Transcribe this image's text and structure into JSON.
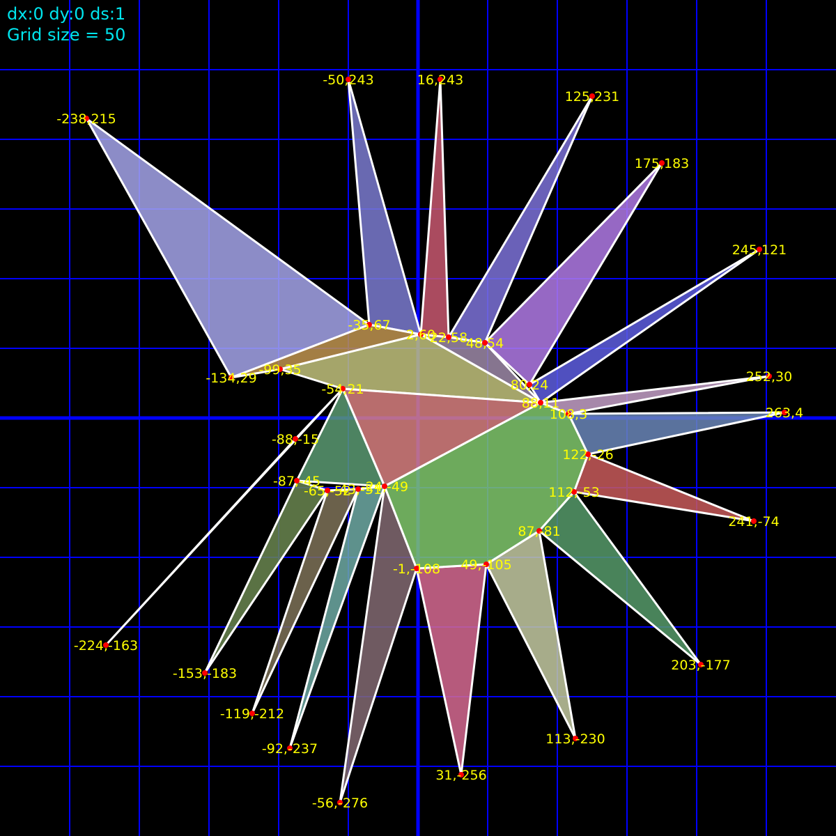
{
  "hud": {
    "offsets": "dx:0 dy:0 ds:1",
    "grid": "Grid size = 50"
  },
  "grid": {
    "size": 50,
    "range": [
      -300,
      300
    ],
    "line_color": "#0000ff",
    "axis_color": "#0000ff"
  },
  "colors": {
    "edge": "#ffffff",
    "point": "#ff0000",
    "label": "#ffff00"
  },
  "points": [
    {
      "id": "p1",
      "x": -238,
      "y": 215,
      "label": "-238,215"
    },
    {
      "id": "p2",
      "x": -50,
      "y": 243,
      "label": "-50,243"
    },
    {
      "id": "p3",
      "x": 16,
      "y": 243,
      "label": "16,243"
    },
    {
      "id": "p4",
      "x": 125,
      "y": 231,
      "label": "125,231"
    },
    {
      "id": "p5",
      "x": 175,
      "y": 183,
      "label": "175,183"
    },
    {
      "id": "p6",
      "x": 245,
      "y": 121,
      "label": "245,121"
    },
    {
      "id": "p7",
      "x": 252,
      "y": 30,
      "label": "252,30"
    },
    {
      "id": "p8",
      "x": 263,
      "y": 4,
      "label": "263,4"
    },
    {
      "id": "p9",
      "x": 241,
      "y": -74,
      "label": "241,-74"
    },
    {
      "id": "p10",
      "x": 203,
      "y": -177,
      "label": "203,-177"
    },
    {
      "id": "p11",
      "x": 113,
      "y": -230,
      "label": "113,-230"
    },
    {
      "id": "p12",
      "x": 31,
      "y": -256,
      "label": "31,-256"
    },
    {
      "id": "p13",
      "x": -56,
      "y": -276,
      "label": "-56,-276"
    },
    {
      "id": "p14",
      "x": -92,
      "y": -237,
      "label": "-92,-237"
    },
    {
      "id": "p15",
      "x": -119,
      "y": -212,
      "label": "-119,-212"
    },
    {
      "id": "p16",
      "x": -153,
      "y": -183,
      "label": "-153,-183"
    },
    {
      "id": "p17",
      "x": -224,
      "y": -163,
      "label": "-224,-163"
    },
    {
      "id": "p18",
      "x": -134,
      "y": 29,
      "label": "-134,29"
    },
    {
      "id": "p19",
      "x": -99,
      "y": 35,
      "label": "-99,35"
    },
    {
      "id": "p20",
      "x": -35,
      "y": 67,
      "label": "-35,67"
    },
    {
      "id": "p21",
      "x": 2,
      "y": 60,
      "label": "2,60"
    },
    {
      "id": "p22",
      "x": 22,
      "y": 58,
      "label": "22,58"
    },
    {
      "id": "p23",
      "x": 48,
      "y": 54,
      "label": "48,54"
    },
    {
      "id": "p24",
      "x": 80,
      "y": 24,
      "label": "80,24"
    },
    {
      "id": "p25",
      "x": 88,
      "y": 11,
      "label": "88,11"
    },
    {
      "id": "p26",
      "x": 108,
      "y": 3,
      "label": "108,3"
    },
    {
      "id": "p27",
      "x": 122,
      "y": -26,
      "label": "122,-26"
    },
    {
      "id": "p28",
      "x": 112,
      "y": -53,
      "label": "112,-53"
    },
    {
      "id": "p29",
      "x": 87,
      "y": -81,
      "label": "87,-81"
    },
    {
      "id": "p30",
      "x": 49,
      "y": -105,
      "label": "49,-105"
    },
    {
      "id": "p31",
      "x": -1,
      "y": -108,
      "label": "-1,-108"
    },
    {
      "id": "p32",
      "x": -24,
      "y": -49,
      "label": "-24,-49"
    },
    {
      "id": "p33",
      "x": -43,
      "y": -51,
      "label": "-43,-51"
    },
    {
      "id": "p34",
      "x": -65,
      "y": -52,
      "label": "-65,-52"
    },
    {
      "id": "p35",
      "x": -87,
      "y": -45,
      "label": "-87,-45"
    },
    {
      "id": "p36",
      "x": -88,
      "y": -15,
      "label": "-88,-15"
    },
    {
      "id": "p37",
      "x": -54,
      "y": 21,
      "label": "-54,21"
    }
  ],
  "polygons": [
    {
      "id": "spike-upper-left",
      "points": [
        "p1",
        "p20",
        "p18"
      ],
      "fill": "#a5a5ea"
    },
    {
      "id": "spike-top-a",
      "points": [
        "p2",
        "p21",
        "p20"
      ],
      "fill": "#7b7bd0"
    },
    {
      "id": "spike-top-b",
      "points": [
        "p3",
        "p22",
        "p21"
      ],
      "fill": "#c85870"
    },
    {
      "id": "spike-top-c",
      "points": [
        "p4",
        "p23",
        "p22"
      ],
      "fill": "#7d72d8"
    },
    {
      "id": "spike-upper-right",
      "points": [
        "p5",
        "p24",
        "p23"
      ],
      "fill": "#b07ae6"
    },
    {
      "id": "spike-right-a",
      "points": [
        "p6",
        "p25",
        "p24"
      ],
      "fill": "#5e5ee0"
    },
    {
      "id": "spike-right-b",
      "points": [
        "p7",
        "p26",
        "p25"
      ],
      "fill": "#c4a0c8"
    },
    {
      "id": "spike-right-c",
      "points": [
        "p8",
        "p27",
        "p26"
      ],
      "fill": "#6a86b8"
    },
    {
      "id": "spike-right-d",
      "points": [
        "p9",
        "p28",
        "p27"
      ],
      "fill": "#c85a5a"
    },
    {
      "id": "spike-lower-right",
      "points": [
        "p10",
        "p29",
        "p28"
      ],
      "fill": "#569a6a"
    },
    {
      "id": "spike-bottom-a",
      "points": [
        "p11",
        "p30",
        "p29"
      ],
      "fill": "#c4caa2"
    },
    {
      "id": "spike-bottom-b",
      "points": [
        "p12",
        "p31",
        "p30"
      ],
      "fill": "#d66a92"
    },
    {
      "id": "spike-bottom-c",
      "points": [
        "p13",
        "p32",
        "p31"
      ],
      "fill": "#826a72"
    },
    {
      "id": "spike-bottom-d",
      "points": [
        "p14",
        "p33",
        "p32"
      ],
      "fill": "#6eaaa4"
    },
    {
      "id": "spike-bottom-e",
      "points": [
        "p15",
        "p34",
        "p33"
      ],
      "fill": "#7e7258"
    },
    {
      "id": "spike-lower-left-a",
      "points": [
        "p16",
        "p35",
        "p34"
      ],
      "fill": "#6a8650"
    },
    {
      "id": "spike-lower-left-b",
      "points": [
        "p17",
        "p37",
        "p36"
      ],
      "fill": "#a59482"
    },
    {
      "id": "band-orange",
      "points": [
        "p18",
        "p20",
        "p21",
        "p19"
      ],
      "fill": "#c09450"
    },
    {
      "id": "mauve-quad",
      "points": [
        "p21",
        "p22",
        "p23",
        "p25"
      ],
      "fill": "#9e8aa8"
    },
    {
      "id": "olive-poly",
      "points": [
        "p19",
        "p21",
        "p25",
        "p37"
      ],
      "fill": "#c2c27c"
    },
    {
      "id": "rose-tri",
      "points": [
        "p37",
        "p25",
        "p32"
      ],
      "fill": "#d88080"
    },
    {
      "id": "teal-tri",
      "points": [
        "p37",
        "p32",
        "p35"
      ],
      "fill": "#5a9a72"
    },
    {
      "id": "center-green",
      "points": [
        "p25",
        "p26",
        "p27",
        "p28",
        "p29",
        "p30",
        "p31",
        "p32"
      ],
      "fill": "#80c86c"
    }
  ]
}
